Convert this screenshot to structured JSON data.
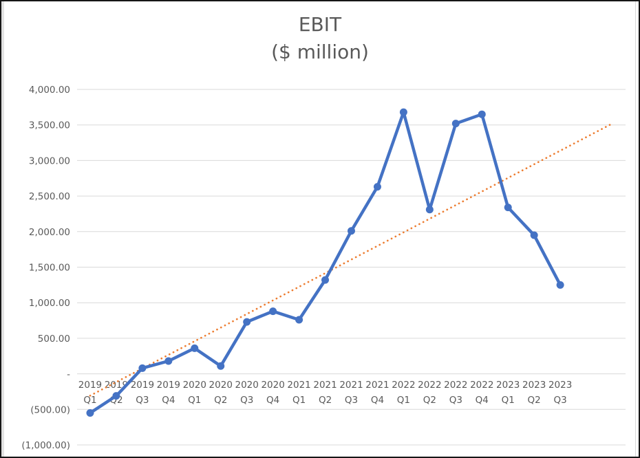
{
  "window": {
    "background": "#ffffff",
    "border_color": "#161616"
  },
  "chart_data": {
    "type": "line",
    "title": "EBIT",
    "subtitle": "($ million)",
    "title_color": "#595959",
    "axis_text_color": "#595959",
    "gridline_color": "#d9d9d9",
    "grid": true,
    "legend": "none",
    "categories": [
      {
        "year": "2019",
        "quarter": "Q1"
      },
      {
        "year": "2019",
        "quarter": "Q2"
      },
      {
        "year": "2019",
        "quarter": "Q3"
      },
      {
        "year": "2019",
        "quarter": "Q4"
      },
      {
        "year": "2020",
        "quarter": "Q1"
      },
      {
        "year": "2020",
        "quarter": "Q2"
      },
      {
        "year": "2020",
        "quarter": "Q3"
      },
      {
        "year": "2020",
        "quarter": "Q4"
      },
      {
        "year": "2021",
        "quarter": "Q1"
      },
      {
        "year": "2021",
        "quarter": "Q2"
      },
      {
        "year": "2021",
        "quarter": "Q3"
      },
      {
        "year": "2021",
        "quarter": "Q4"
      },
      {
        "year": "2022",
        "quarter": "Q1"
      },
      {
        "year": "2022",
        "quarter": "Q2"
      },
      {
        "year": "2022",
        "quarter": "Q3"
      },
      {
        "year": "2022",
        "quarter": "Q4"
      },
      {
        "year": "2023",
        "quarter": "Q1"
      },
      {
        "year": "2023",
        "quarter": "Q2"
      },
      {
        "year": "2023",
        "quarter": "Q3"
      }
    ],
    "series": [
      {
        "name": "EBIT",
        "color": "#4472C4",
        "marker": "circle",
        "values": [
          -550,
          -310,
          80,
          180,
          360,
          110,
          730,
          880,
          760,
          1320,
          2010,
          2630,
          3680,
          2310,
          3520,
          3650,
          2340,
          1950,
          1250
        ]
      }
    ],
    "trendline": {
      "type": "linear",
      "color": "#ED7D31",
      "style": "dotted",
      "start_value": -307,
      "end_value": 3521,
      "forecast_periods": 2
    },
    "y_axis": {
      "min": -1000,
      "max": 4000,
      "step": 500,
      "tick_labels": [
        "4,000.00",
        "3,500.00",
        "3,000.00",
        "2,500.00",
        "2,000.00",
        "1,500.00",
        "1,000.00",
        "500.00",
        "-",
        "(500.00)",
        "(1,000.00)"
      ]
    }
  }
}
